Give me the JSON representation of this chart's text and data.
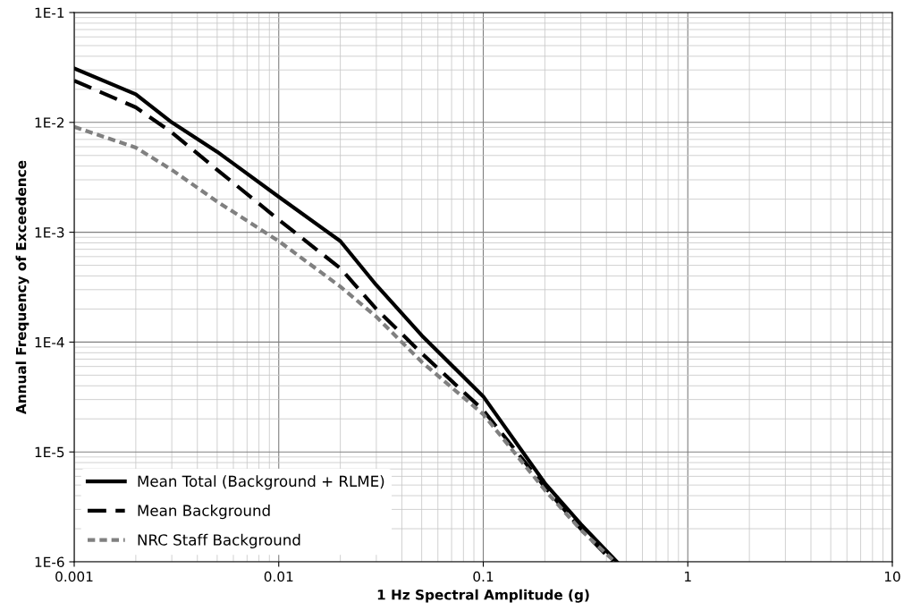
{
  "chart_data": {
    "type": "line",
    "xlabel": "1 Hz Spectral Amplitude (g)",
    "ylabel": "Annual Frequency of Exceedence",
    "log": "xy",
    "grid": true,
    "legend": "bottom left",
    "marker": "none",
    "xlim": [
      0.001,
      10
    ],
    "ylim": [
      1e-06,
      0.1
    ],
    "xticks": [
      {
        "value": 0.001,
        "label": "0.001"
      },
      {
        "value": 0.01,
        "label": "0.01"
      },
      {
        "value": 0.1,
        "label": "0.1"
      },
      {
        "value": 1,
        "label": "1"
      },
      {
        "value": 10,
        "label": "10"
      }
    ],
    "yticks": [
      {
        "value": 1e-06,
        "label": "1E-6"
      },
      {
        "value": 1e-05,
        "label": "1E-5"
      },
      {
        "value": 0.0001,
        "label": "1E-4"
      },
      {
        "value": 0.001,
        "label": "1E-3"
      },
      {
        "value": 0.01,
        "label": "1E-2"
      },
      {
        "value": 0.1,
        "label": "1E-1"
      }
    ],
    "series": [
      {
        "name": "Mean Total (Background + RLME)",
        "color": "#000000",
        "line_style": "solid",
        "x": [
          0.001,
          0.002,
          0.003,
          0.005,
          0.01,
          0.02,
          0.03,
          0.05,
          0.1,
          0.2,
          0.3,
          0.45
        ],
        "values": [
          0.031,
          0.018,
          0.01,
          0.0054,
          0.0021,
          0.00083,
          0.00033,
          0.000115,
          3.2e-05,
          5.2e-06,
          2.2e-06,
          1e-06
        ]
      },
      {
        "name": "Mean Background",
        "color": "#000000",
        "line_style": "dashed",
        "x": [
          0.001,
          0.002,
          0.003,
          0.005,
          0.01,
          0.02,
          0.03,
          0.05,
          0.1,
          0.2,
          0.3,
          0.43
        ],
        "values": [
          0.024,
          0.0137,
          0.0081,
          0.0037,
          0.0013,
          0.00047,
          0.0002,
          7.9e-05,
          2.4e-05,
          4.8e-06,
          2e-06,
          1e-06
        ]
      },
      {
        "name": "NRC Staff Background",
        "color": "#808080",
        "line_style": "dotted",
        "x": [
          0.001,
          0.002,
          0.003,
          0.005,
          0.01,
          0.02,
          0.03,
          0.05,
          0.1,
          0.2,
          0.3,
          0.44
        ],
        "values": [
          0.0091,
          0.0059,
          0.0037,
          0.0019,
          0.00083,
          0.00032,
          0.00017,
          6.6e-05,
          2.2e-05,
          4.5e-06,
          1.95e-06,
          1e-06
        ]
      }
    ]
  }
}
